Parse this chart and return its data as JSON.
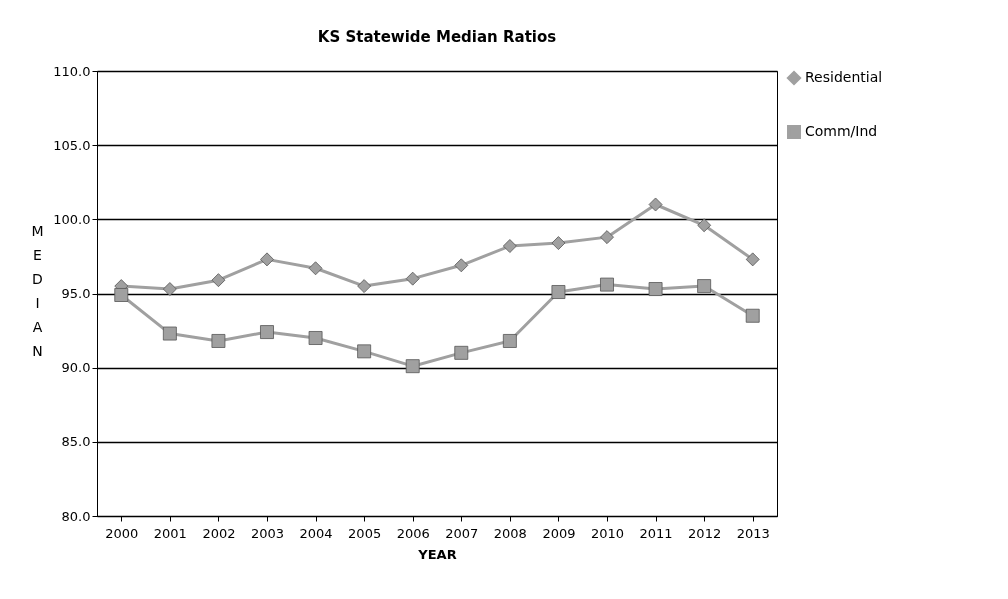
{
  "chart_data": {
    "type": "line",
    "title": "KS Statewide Median Ratios",
    "xlabel": "YEAR",
    "ylabel": "MEDIAN",
    "categories": [
      "2000",
      "2001",
      "2002",
      "2003",
      "2004",
      "2005",
      "2006",
      "2007",
      "2008",
      "2009",
      "2010",
      "2011",
      "2012",
      "2013"
    ],
    "series": [
      {
        "name": "Residential",
        "color": "#a0a0a0",
        "marker": "diamond",
        "values": [
          95.5,
          95.3,
          95.9,
          97.3,
          96.7,
          95.5,
          96.0,
          96.9,
          98.2,
          98.4,
          98.8,
          101.0,
          99.6,
          97.3
        ]
      },
      {
        "name": "Comm/Ind",
        "color": "#a0a0a0",
        "marker": "square",
        "values": [
          94.9,
          92.3,
          91.8,
          92.4,
          92.0,
          91.1,
          90.1,
          91.0,
          91.8,
          95.1,
          95.6,
          95.3,
          95.5,
          93.5
        ]
      }
    ],
    "ylim": [
      80,
      110
    ],
    "yticks": [
      {
        "value": 80,
        "label": "80.0"
      },
      {
        "value": 85,
        "label": "85.0"
      },
      {
        "value": 90,
        "label": "90.0"
      },
      {
        "value": 95,
        "label": "95.0"
      },
      {
        "value": 100,
        "label": "100.0"
      },
      {
        "value": 105,
        "label": "105.0"
      },
      {
        "value": 110,
        "label": "110.0"
      }
    ],
    "grid": "y",
    "legend": "right"
  }
}
